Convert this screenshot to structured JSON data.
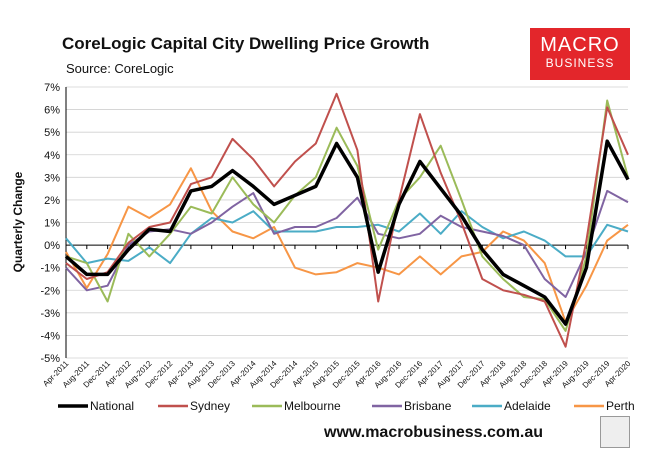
{
  "title": "CoreLogic Capital City Dwelling Price Growth",
  "subtitle": "Source: CoreLogic",
  "logo": {
    "line1": "MACRO",
    "line2": "BUSINESS"
  },
  "footer_url": "www.macrobusiness.com.au",
  "colors": {
    "National": "#000000",
    "Sydney": "#c0504d",
    "Melbourne": "#9bbb59",
    "Brisbane": "#8064a2",
    "Adelaide": "#4bacc6",
    "Perth": "#f79646"
  },
  "chart_data": {
    "type": "line",
    "title": "CoreLogic Capital City Dwelling Price Growth",
    "ylabel": "Quarterly Change",
    "xlabel": "",
    "ylim": [
      -5,
      7
    ],
    "yticks": [
      "7%",
      "6%",
      "5%",
      "4%",
      "3%",
      "2%",
      "1%",
      "0%",
      "-1%",
      "-2%",
      "-3%",
      "-4%",
      "-5%"
    ],
    "categories": [
      "Apr-2011",
      "Aug-2011",
      "Dec-2011",
      "Apr-2012",
      "Aug-2012",
      "Dec-2012",
      "Apr-2013",
      "Aug-2013",
      "Dec-2013",
      "Apr-2014",
      "Aug-2014",
      "Dec-2014",
      "Apr-2015",
      "Aug-2015",
      "Dec-2015",
      "Apr-2016",
      "Aug-2016",
      "Dec-2016",
      "Apr-2017",
      "Aug-2017",
      "Dec-2017",
      "Apr-2018",
      "Aug-2018",
      "Dec-2018",
      "Apr-2019",
      "Aug-2019",
      "Dec-2019",
      "Apr-2020"
    ],
    "series": [
      {
        "name": "National",
        "values": [
          -0.5,
          -1.3,
          -1.3,
          -0.2,
          0.7,
          0.6,
          2.4,
          2.6,
          3.3,
          2.6,
          1.8,
          2.2,
          2.6,
          4.5,
          3.0,
          -1.2,
          1.8,
          3.7,
          2.5,
          1.3,
          -0.2,
          -1.3,
          -1.8,
          -2.3,
          -3.5,
          -1.0,
          4.6,
          2.9
        ]
      },
      {
        "name": "Sydney",
        "values": [
          -0.8,
          -1.5,
          -1.2,
          0.1,
          0.8,
          1.0,
          2.7,
          3.0,
          4.7,
          3.8,
          2.6,
          3.7,
          4.5,
          6.7,
          4.2,
          -2.5,
          2.0,
          5.8,
          3.2,
          1.0,
          -1.5,
          -2.0,
          -2.2,
          -2.5,
          -4.5,
          0.2,
          6.1,
          4.0
        ]
      },
      {
        "name": "Melbourne",
        "values": [
          -0.5,
          -0.8,
          -2.5,
          0.5,
          -0.5,
          0.5,
          1.7,
          1.4,
          3.0,
          1.8,
          1.0,
          2.2,
          3.0,
          5.2,
          3.5,
          -0.2,
          2.0,
          3.0,
          4.4,
          2.0,
          -0.5,
          -1.5,
          -2.3,
          -2.4,
          -3.8,
          -0.5,
          6.4,
          3.0
        ]
      },
      {
        "name": "Brisbane",
        "values": [
          -1.0,
          -2.0,
          -1.8,
          0.0,
          0.6,
          0.7,
          0.5,
          1.0,
          1.7,
          2.3,
          0.5,
          0.8,
          0.8,
          1.2,
          2.1,
          0.5,
          0.3,
          0.5,
          1.3,
          0.8,
          0.6,
          0.4,
          0.0,
          -1.5,
          -2.3,
          -0.3,
          2.4,
          1.9
        ]
      },
      {
        "name": "Adelaide",
        "values": [
          0.3,
          -0.8,
          -0.6,
          -0.7,
          -0.1,
          -0.8,
          0.5,
          1.2,
          1.0,
          1.5,
          0.6,
          0.6,
          0.6,
          0.8,
          0.8,
          0.9,
          0.6,
          1.4,
          0.5,
          1.5,
          0.8,
          0.3,
          0.6,
          0.2,
          -0.5,
          -0.5,
          0.9,
          0.6
        ]
      },
      {
        "name": "Perth",
        "values": [
          -0.3,
          -1.9,
          -0.4,
          1.7,
          1.2,
          1.8,
          3.4,
          1.5,
          0.6,
          0.3,
          0.8,
          -1.0,
          -1.3,
          -1.2,
          -0.8,
          -1.0,
          -1.3,
          -0.5,
          -1.3,
          -0.5,
          -0.3,
          0.6,
          0.2,
          -0.8,
          -3.4,
          -1.8,
          0.2,
          0.9
        ]
      }
    ],
    "legend_position": "bottom"
  }
}
